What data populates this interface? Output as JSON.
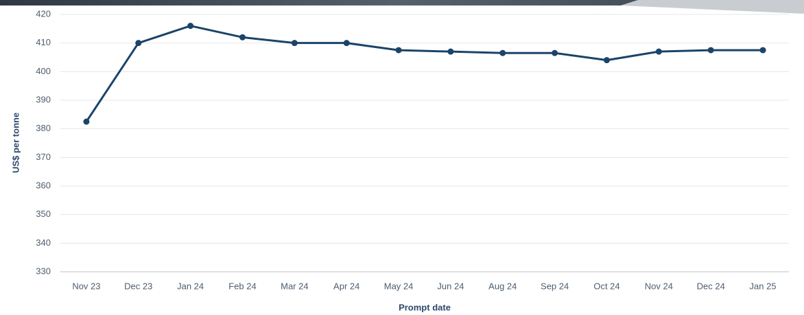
{
  "chart_data": {
    "type": "line",
    "x_label": "Prompt date",
    "y_label": "US$ per tonne",
    "categories": [
      "Nov 23",
      "Dec 23",
      "Jan 24",
      "Feb 24",
      "Mar 24",
      "Apr 24",
      "May 24",
      "Jun 24",
      "Aug 24",
      "Sep 24",
      "Oct 24",
      "Nov 24",
      "Dec 24",
      "Jan 25"
    ],
    "series": [
      {
        "color": "#1b4468",
        "values": [
          382.5,
          410,
          416,
          412,
          410,
          410,
          407.5,
          407,
          406.5,
          406.5,
          404,
          407,
          407.5,
          407.5
        ]
      }
    ],
    "ylim": [
      330,
      420
    ],
    "yticks": [
      330,
      340,
      350,
      360,
      370,
      380,
      390,
      400,
      410,
      420
    ],
    "grid": true
  }
}
